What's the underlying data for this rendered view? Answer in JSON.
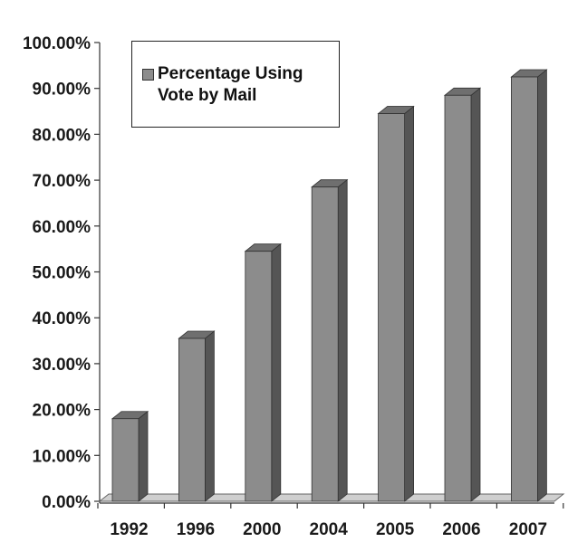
{
  "chart_data": {
    "type": "bar",
    "categories": [
      "1992",
      "1996",
      "2000",
      "2004",
      "2005",
      "2006",
      "2007"
    ],
    "series": [
      {
        "name": "Percentage Using Vote by Mail",
        "values": [
          18,
          35.5,
          54.5,
          68.5,
          84.5,
          88.5,
          92.5
        ]
      }
    ],
    "y_ticks": [
      "0.00%",
      "10.00%",
      "20.00%",
      "30.00%",
      "40.00%",
      "50.00%",
      "60.00%",
      "70.00%",
      "80.00%",
      "90.00%",
      "100.00%"
    ],
    "ylim": [
      0,
      100
    ],
    "y_unit": "percent",
    "style": "3d-column",
    "legend_position": "top-left",
    "grid": false,
    "colors": {
      "bar_front": "#8c8c8c",
      "bar_side": "#555555",
      "bar_top": "#6f6f6f"
    }
  }
}
